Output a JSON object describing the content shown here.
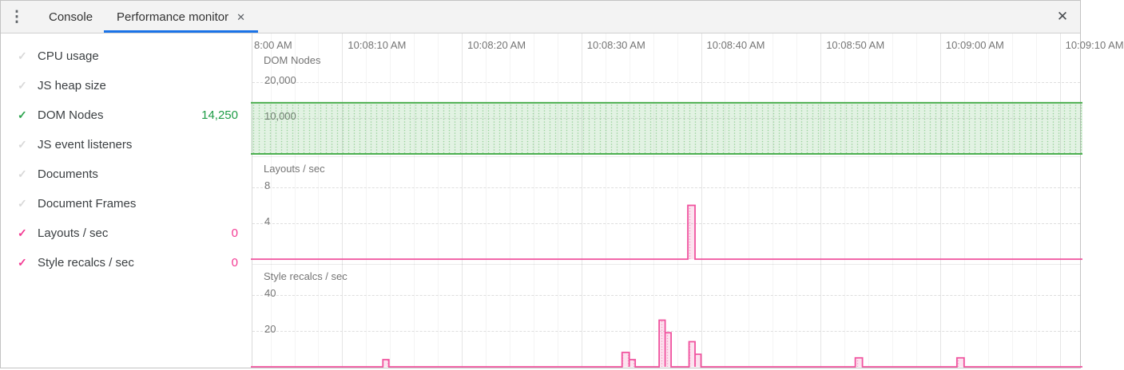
{
  "toolbar": {
    "kebab_icon": "⋮",
    "tabs": [
      {
        "label": "Console",
        "active": false
      },
      {
        "label": "Performance monitor",
        "active": true,
        "close_icon": "✕"
      }
    ],
    "close_icon": "✕"
  },
  "icons": {
    "check": "✓"
  },
  "sidebar": {
    "items": [
      {
        "label": "CPU usage",
        "checked": false,
        "value": ""
      },
      {
        "label": "JS heap size",
        "checked": false,
        "value": ""
      },
      {
        "label": "DOM Nodes",
        "checked": true,
        "color": "green",
        "value": "14,250"
      },
      {
        "label": "JS event listeners",
        "checked": false,
        "value": ""
      },
      {
        "label": "Documents",
        "checked": false,
        "value": ""
      },
      {
        "label": "Document Frames",
        "checked": false,
        "value": ""
      },
      {
        "label": "Layouts / sec",
        "checked": true,
        "color": "pink",
        "value": "0"
      },
      {
        "label": "Style recalcs / sec",
        "checked": true,
        "color": "pink",
        "value": "0"
      }
    ]
  },
  "colors": {
    "accent_blue": "#1a73e8",
    "green_stroke": "#4caf50",
    "green_text": "#1e9c46",
    "pink_stroke": "#f0539f",
    "pink_text": "#f33a93",
    "grid_major": "rgba(0,0,0,0.10)",
    "muted_text": "#757575"
  },
  "chart_data": {
    "type": "line",
    "time_axis": {
      "ticks": [
        {
          "t": 0,
          "label": "8:00 AM",
          "clipped": true
        },
        {
          "t": 10,
          "label": "10:08:10 AM"
        },
        {
          "t": 20,
          "label": "10:08:20 AM"
        },
        {
          "t": 30,
          "label": "10:08:30 AM"
        },
        {
          "t": 40,
          "label": "10:08:40 AM"
        },
        {
          "t": 50,
          "label": "10:08:50 AM"
        },
        {
          "t": 60,
          "label": "10:09:00 AM"
        },
        {
          "t": 70,
          "label": "10:09:10 AM"
        }
      ],
      "minor_tick_s": 2
    },
    "charts": [
      {
        "title": "DOM Nodes",
        "color": "#4caf50",
        "y_ticks": [
          {
            "value": 20000,
            "label": "20,000"
          },
          {
            "value": 10000,
            "label": "10,000"
          }
        ],
        "ylim": [
          0,
          28000
        ],
        "series": {
          "kind": "constant",
          "value": 14250
        }
      },
      {
        "title": "Layouts / sec",
        "color": "#f0539f",
        "y_ticks": [
          {
            "value": 8,
            "label": "8"
          },
          {
            "value": 4,
            "label": "4"
          }
        ],
        "ylim": [
          0,
          11
        ],
        "series": {
          "kind": "steps",
          "baseline": 0,
          "steps": [
            {
              "t0": 38.9,
              "t1": 39.5,
              "value": 6
            }
          ]
        }
      },
      {
        "title": "Style recalcs / sec",
        "color": "#f0539f",
        "y_ticks": [
          {
            "value": 40,
            "label": "40"
          },
          {
            "value": 20,
            "label": "20"
          }
        ],
        "ylim": [
          0,
          57
        ],
        "series": {
          "kind": "steps",
          "baseline": 0,
          "steps": [
            {
              "t0": 13.4,
              "t1": 13.9,
              "value": 4
            },
            {
              "t0": 33.4,
              "t1": 34.0,
              "value": 8
            },
            {
              "t0": 34.0,
              "t1": 34.5,
              "value": 4
            },
            {
              "t0": 36.5,
              "t1": 37.0,
              "value": 26
            },
            {
              "t0": 37.0,
              "t1": 37.5,
              "value": 19
            },
            {
              "t0": 39.0,
              "t1": 39.5,
              "value": 14
            },
            {
              "t0": 39.5,
              "t1": 40.0,
              "value": 7
            },
            {
              "t0": 52.9,
              "t1": 53.5,
              "value": 5
            },
            {
              "t0": 61.4,
              "t1": 62.0,
              "value": 5
            }
          ]
        }
      }
    ]
  }
}
